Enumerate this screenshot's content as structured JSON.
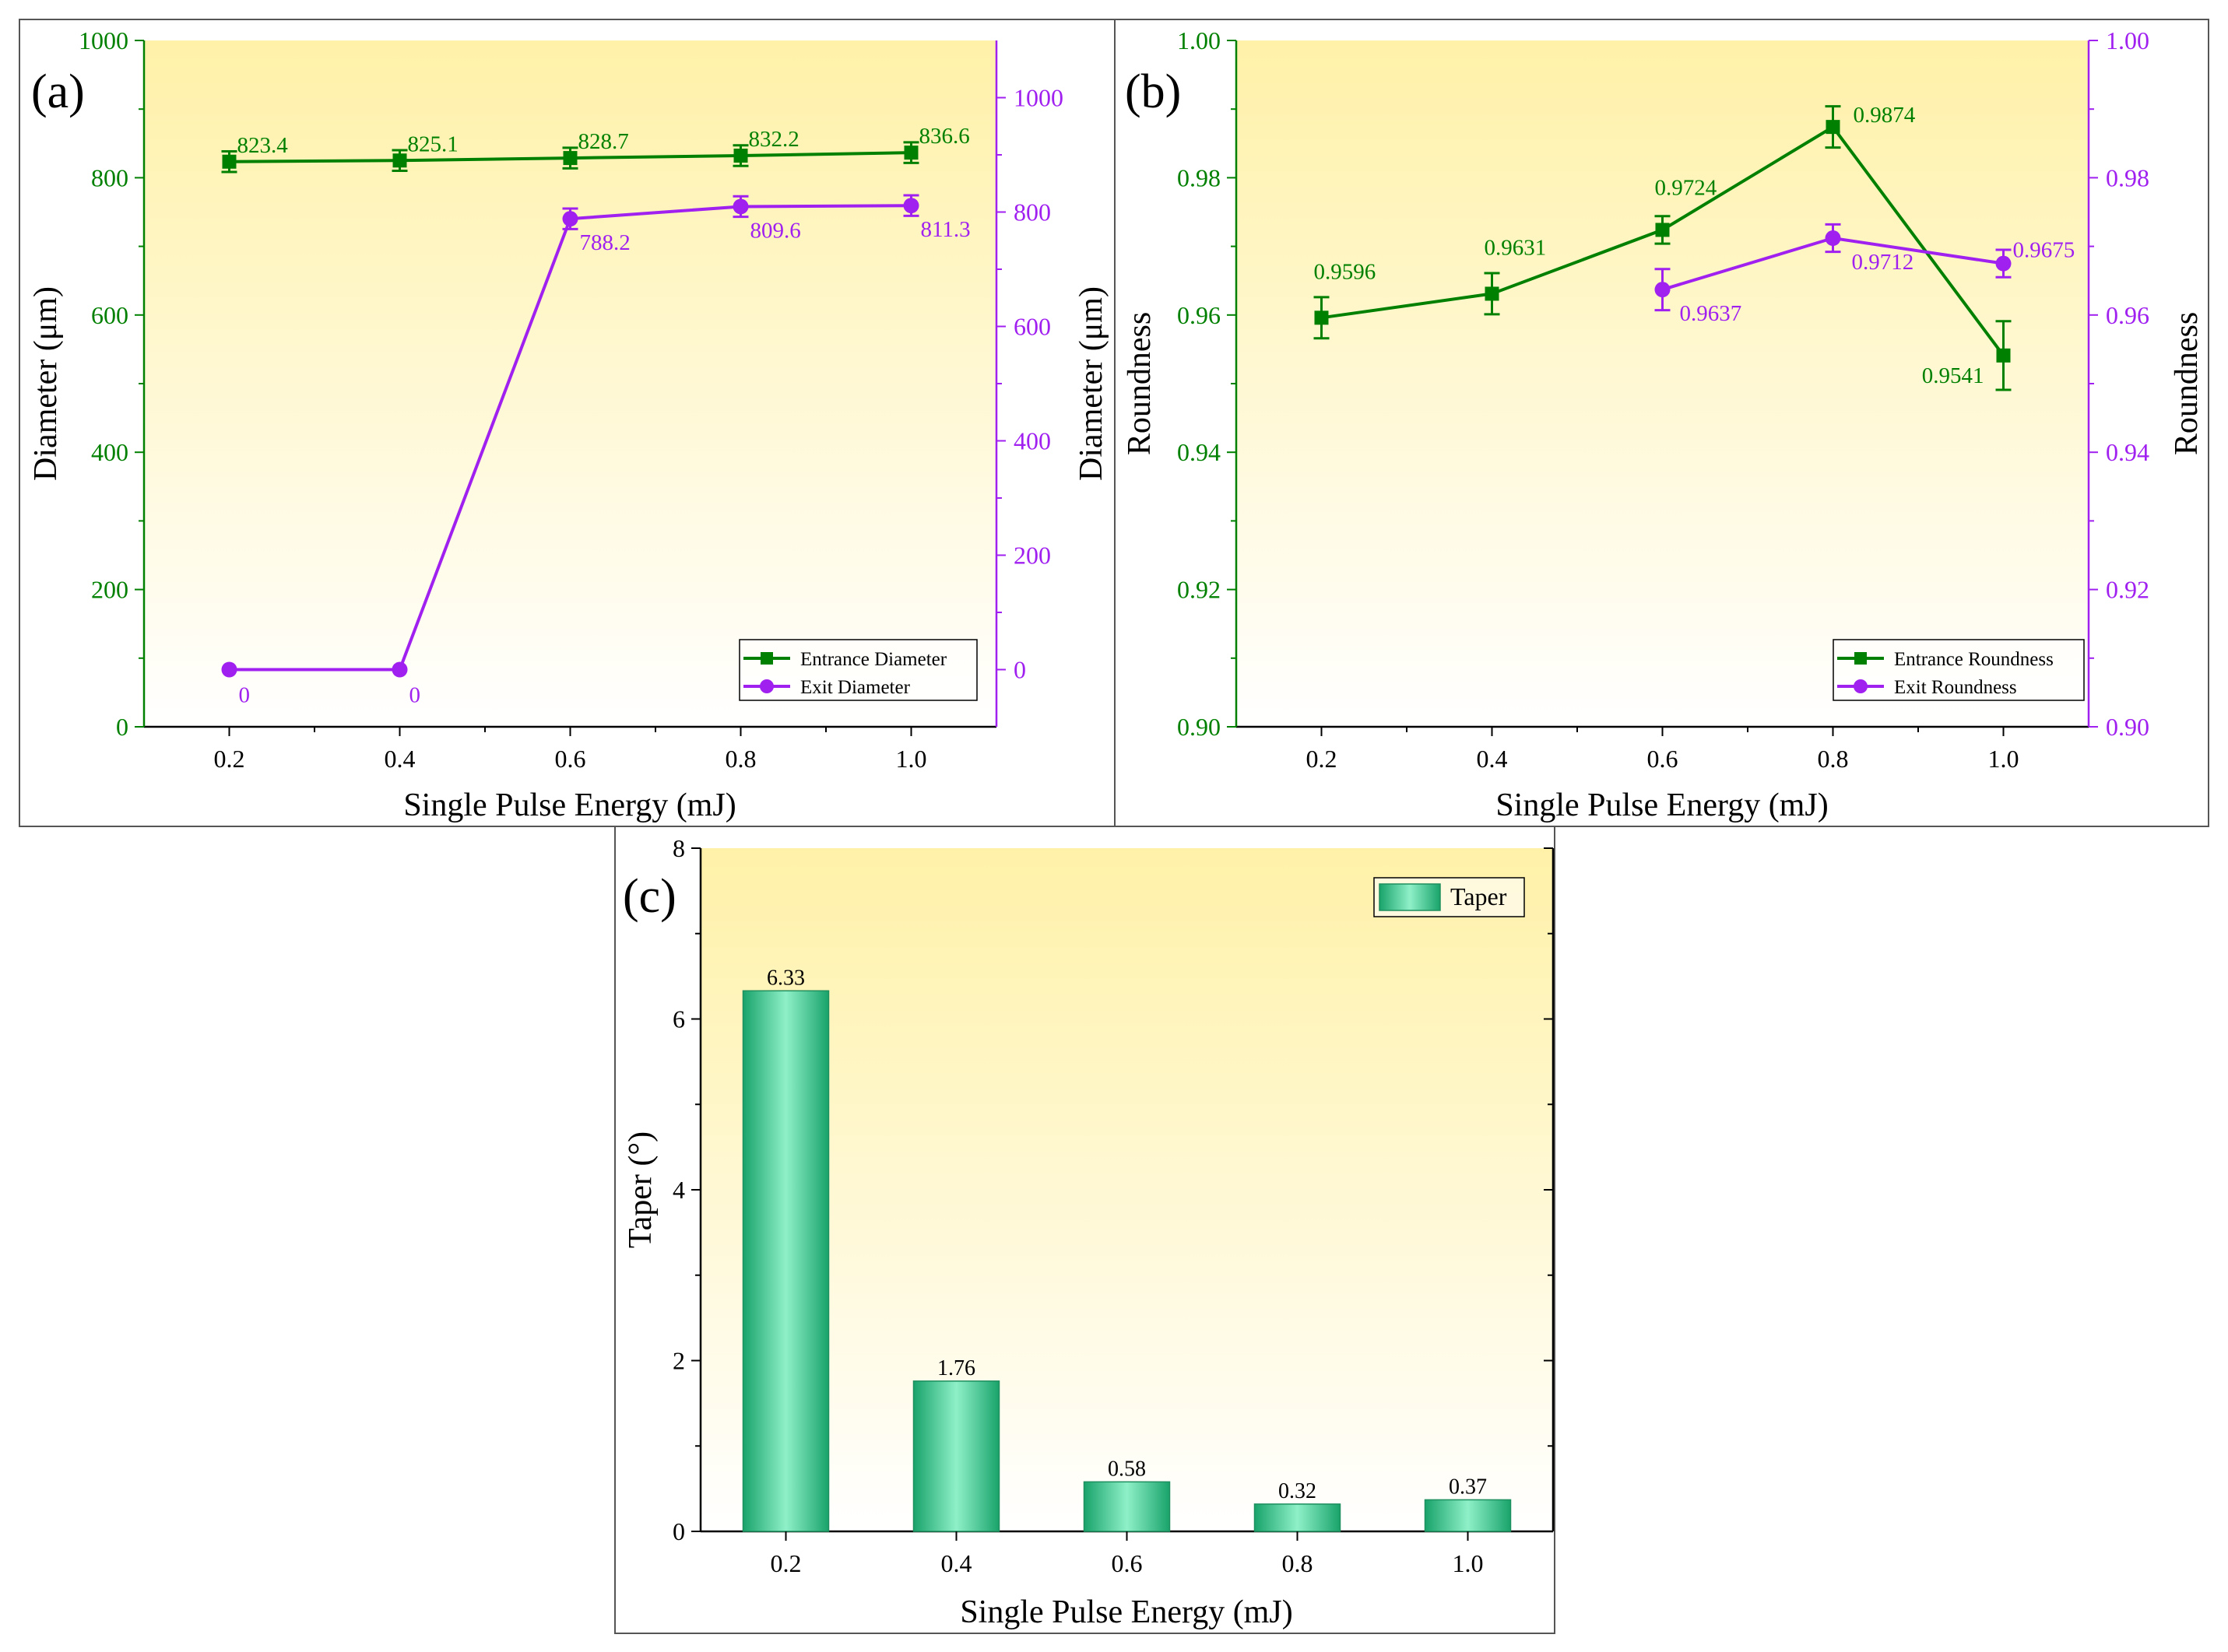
{
  "colors": {
    "green": "#008000",
    "purple": "#A020F0",
    "bar": "#2DC98A",
    "bar_edge": "#1E8F5F",
    "bg_top": "#FFF1A8",
    "bg_bottom": "#FFFFFF",
    "axis": "#000000"
  },
  "chart_data": [
    {
      "panel_label": "(a)",
      "type": "line",
      "xlabel": "Single Pulse Energy (mJ)",
      "x_ticks": [
        "0.2",
        "0.4",
        "0.6",
        "0.8",
        "1.0"
      ],
      "x": [
        0.2,
        0.4,
        0.6,
        0.8,
        1.0
      ],
      "xlim": [
        0.1,
        1.1
      ],
      "ylabel_left": "Diameter (μm)",
      "ylabel_right": "Diameter (μm)",
      "ylim_left": [
        0,
        1000
      ],
      "ylim_right": [
        -100,
        1100
      ],
      "y_ticks_left": [
        "0",
        "200",
        "400",
        "600",
        "800",
        "1000"
      ],
      "y_ticks_right": [
        "0",
        "200",
        "400",
        "600",
        "800",
        "1000"
      ],
      "legend_position": "bottom-right",
      "series": [
        {
          "name": "Entrance Diameter",
          "axis": "left",
          "marker": "square",
          "values": [
            823.4,
            825.1,
            828.7,
            832.2,
            836.6
          ],
          "errors": [
            15,
            15,
            15,
            15,
            15
          ],
          "labels": [
            "823.4",
            "825.1",
            "828.7",
            "832.2",
            "836.6"
          ]
        },
        {
          "name": "Exit Diameter",
          "axis": "right",
          "marker": "circle",
          "values": [
            0,
            0,
            788.2,
            809.6,
            811.3
          ],
          "errors": [
            0,
            0,
            18,
            18,
            18
          ],
          "labels": [
            "0",
            "0",
            "788.2",
            "809.6",
            "811.3"
          ]
        }
      ]
    },
    {
      "panel_label": "(b)",
      "type": "line",
      "xlabel": "Single Pulse Energy (mJ)",
      "x_ticks": [
        "0.2",
        "0.4",
        "0.6",
        "0.8",
        "1.0"
      ],
      "x": [
        0.2,
        0.4,
        0.6,
        0.8,
        1.0
      ],
      "xlim": [
        0.1,
        1.1
      ],
      "ylabel_left": "Roundness",
      "ylabel_right": "Roundness",
      "ylim_left": [
        0.9,
        1.0
      ],
      "ylim_right": [
        0.9,
        1.0
      ],
      "y_ticks_left": [
        "0.90",
        "0.92",
        "0.94",
        "0.96",
        "0.98",
        "1.00"
      ],
      "y_ticks_right": [
        "0.90",
        "0.92",
        "0.94",
        "0.96",
        "0.98",
        "1.00"
      ],
      "legend_position": "bottom-right",
      "series": [
        {
          "name": "Entrance Roundness",
          "axis": "left",
          "marker": "square",
          "values": [
            0.9596,
            0.9631,
            0.9724,
            0.9874,
            0.9541
          ],
          "errors": [
            0.003,
            0.003,
            0.002,
            0.003,
            0.005
          ],
          "labels": [
            "0.9596",
            "0.9631",
            "0.9724",
            "0.9874",
            "0.9541"
          ]
        },
        {
          "name": "Exit Roundness",
          "axis": "right",
          "marker": "circle",
          "x": [
            0.6,
            0.8,
            1.0
          ],
          "values": [
            0.9637,
            0.9712,
            0.9675
          ],
          "errors": [
            0.003,
            0.002,
            0.002
          ],
          "labels": [
            "0.9637",
            "0.9712",
            "0.9675"
          ]
        }
      ]
    },
    {
      "panel_label": "(c)",
      "type": "bar",
      "xlabel": "Single Pulse Energy (mJ)",
      "ylabel": "Taper (°)",
      "categories": [
        "0.2",
        "0.4",
        "0.6",
        "0.8",
        "1.0"
      ],
      "values": [
        6.33,
        1.76,
        0.58,
        0.32,
        0.37
      ],
      "labels": [
        "6.33",
        "1.76",
        "0.58",
        "0.32",
        "0.37"
      ],
      "ylim": [
        0,
        8
      ],
      "y_ticks": [
        "0",
        "2",
        "4",
        "6",
        "8"
      ],
      "legend": [
        "Taper"
      ],
      "legend_position": "top-right"
    }
  ]
}
